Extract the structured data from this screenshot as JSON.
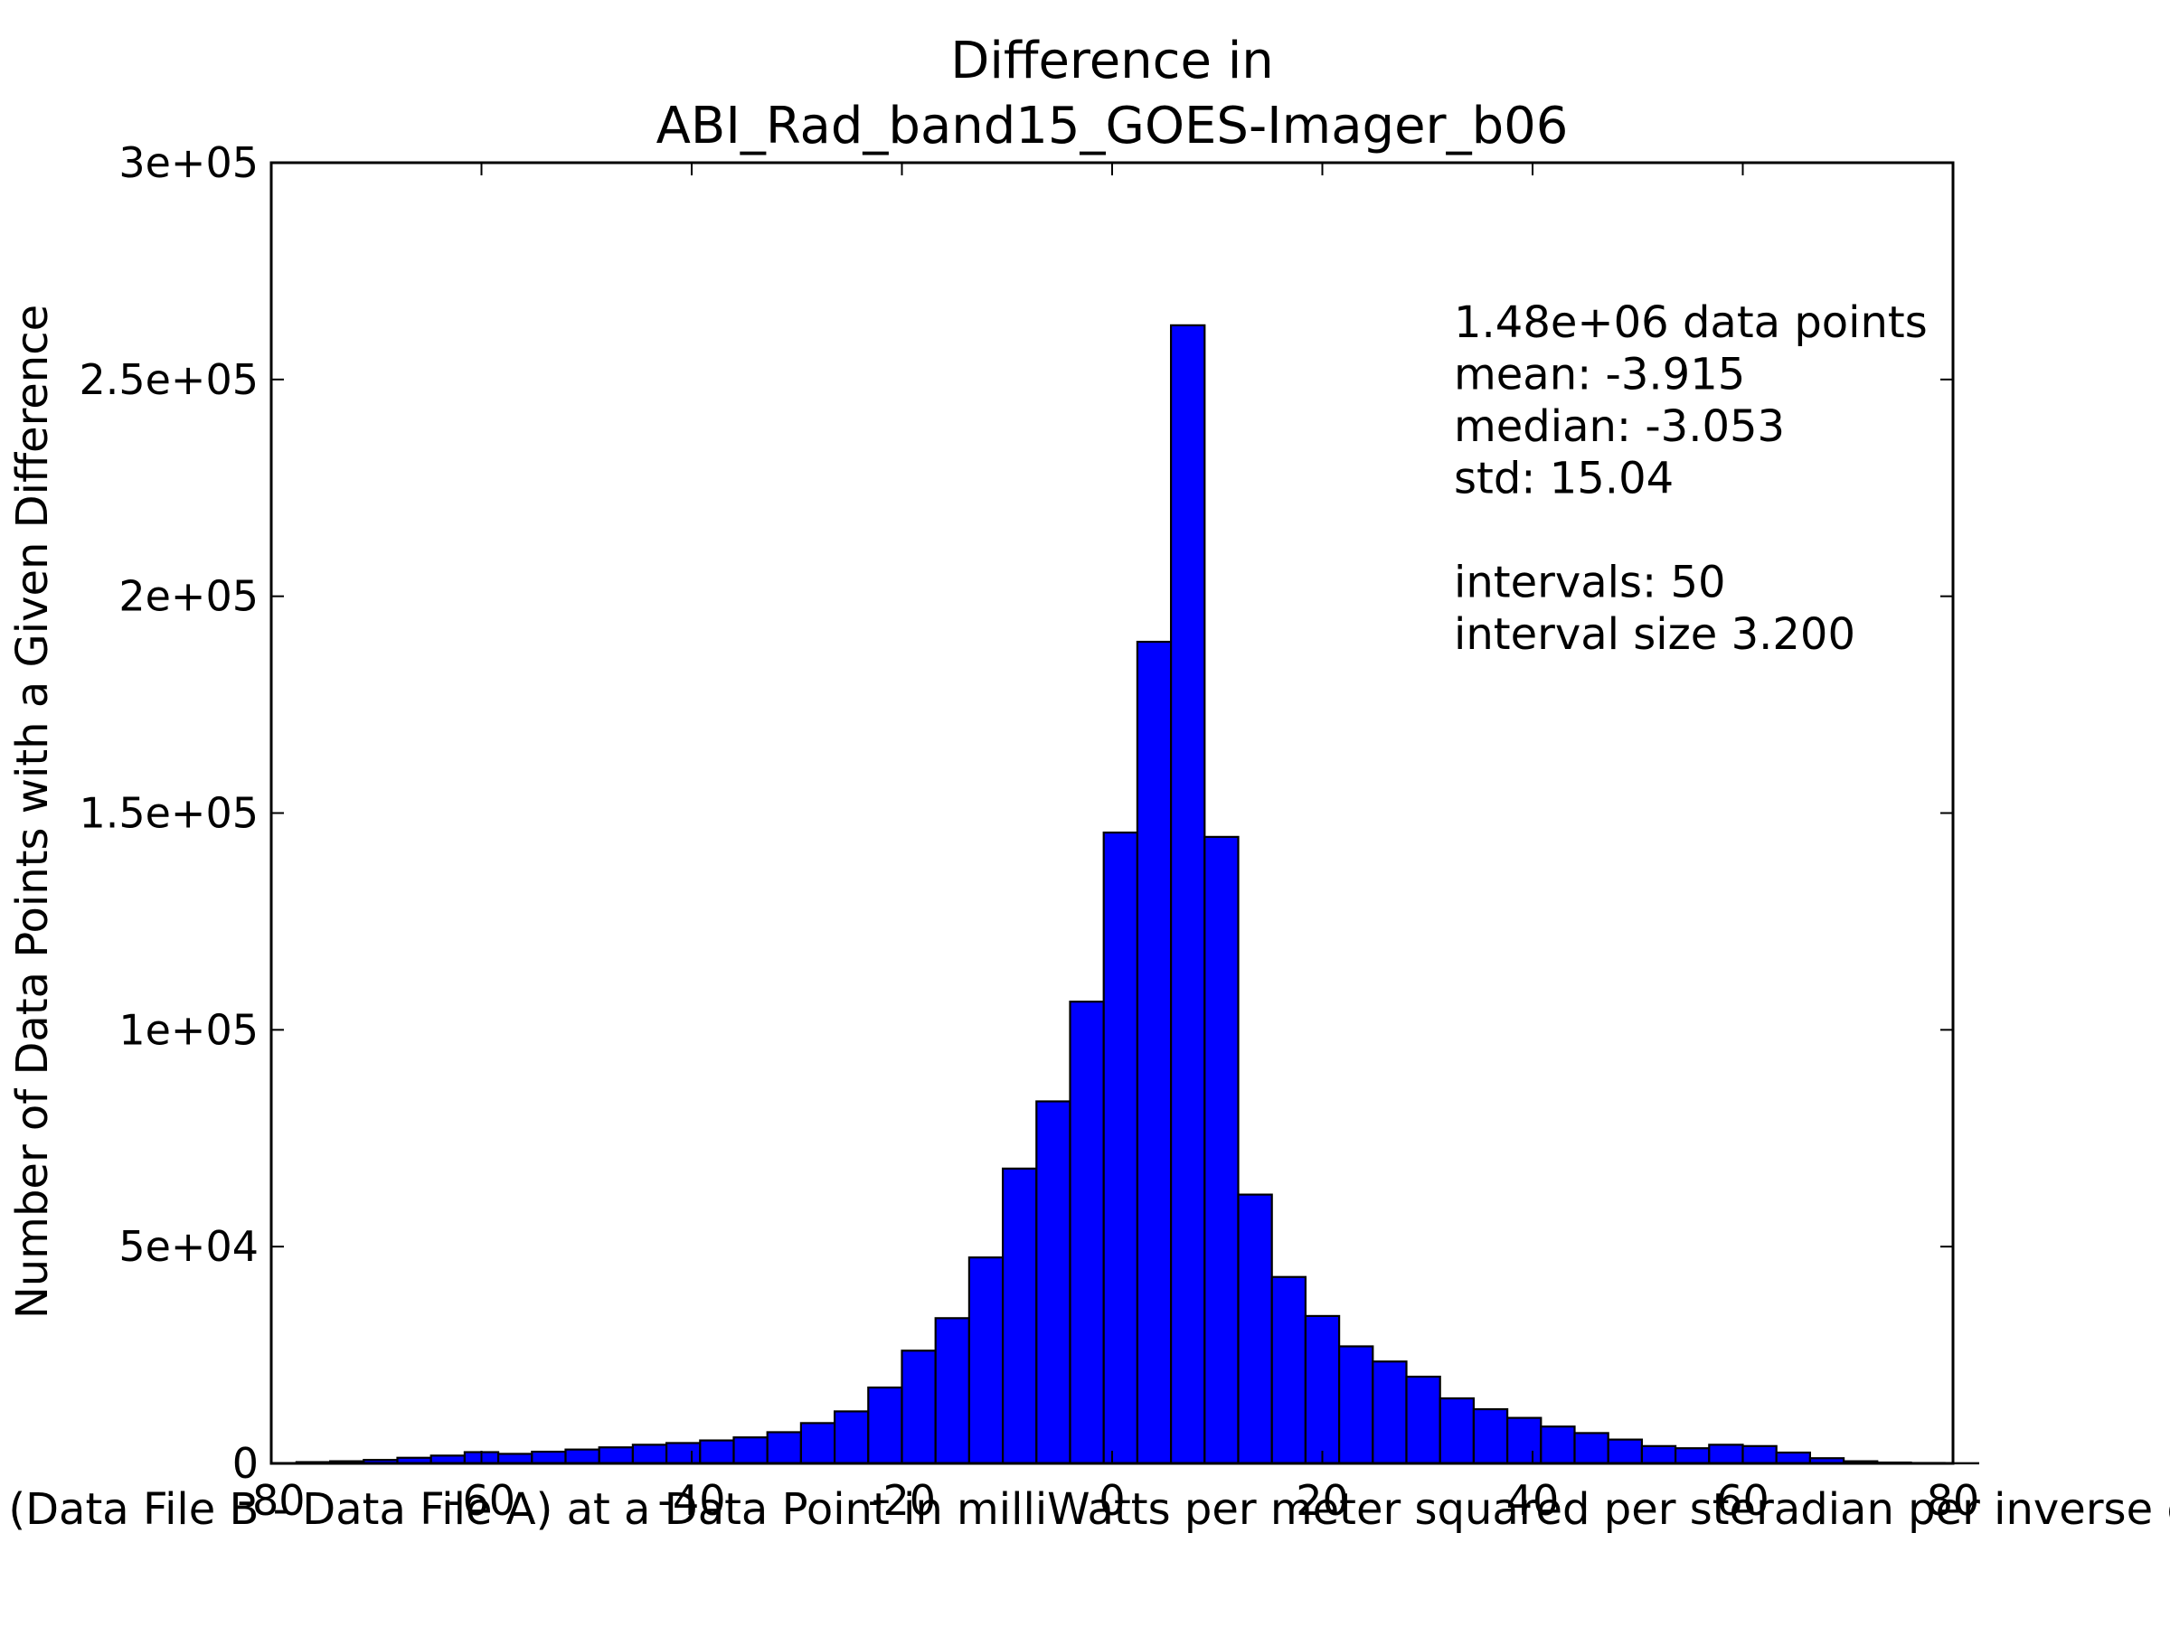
{
  "chart_data": {
    "type": "bar",
    "title_lines": [
      "Difference in",
      "ABI_Rad_band15_GOES-Imager_b06"
    ],
    "xlabel": "Value of (Data File B - Data File A) at a Data Point in milliWatts per meter squared per steradian per inverse centimeter",
    "ylabel": "Number of Data Points with a Given Difference",
    "xlim": [
      -80,
      80
    ],
    "ylim": [
      0,
      300000
    ],
    "x_ticks": [
      -80,
      -60,
      -40,
      -20,
      0,
      20,
      40,
      60,
      80
    ],
    "x_tick_labels": [
      "-80",
      "-60",
      "-40",
      "-20",
      "0",
      "20",
      "40",
      "60",
      "80"
    ],
    "y_ticks": [
      0,
      50000,
      100000,
      150000,
      200000,
      250000,
      300000
    ],
    "y_tick_labels": [
      "0",
      "5e+04",
      "1e+05",
      "1.5e+05",
      "2e+05",
      "2.5e+05",
      "3e+05"
    ],
    "grid": false,
    "bar_color": "#0000ff",
    "bin_start": -77.6,
    "bin_width": 3.2,
    "values": [
      300,
      500,
      800,
      1300,
      1800,
      2600,
      2200,
      2700,
      3200,
      3700,
      4300,
      4700,
      5300,
      6000,
      7200,
      9300,
      12000,
      17500,
      26000,
      33500,
      47500,
      68000,
      83500,
      106500,
      145500,
      189500,
      262500,
      144500,
      62000,
      43000,
      34000,
      27000,
      23500,
      20000,
      15000,
      12500,
      10500,
      8500,
      7000,
      5500,
      4000,
      3500,
      4300,
      4000,
      2500,
      1200,
      500,
      200,
      100,
      50
    ],
    "annotations": [
      "1.48e+06 data points",
      "mean: -3.915",
      "median: -3.053",
      "std: 15.04",
      "",
      "intervals: 50",
      "interval size 3.200"
    ]
  }
}
